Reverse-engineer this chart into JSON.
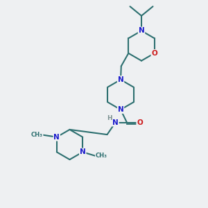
{
  "bg_color": "#eef0f2",
  "bond_color": "#2d7070",
  "N_color": "#1a1acc",
  "O_color": "#cc1a1a",
  "H_color": "#7a9090",
  "font_size": 7.5,
  "line_width": 1.5,
  "figsize": [
    3.0,
    3.0
  ],
  "dpi": 100,
  "xlim": [
    0,
    10
  ],
  "ylim": [
    0,
    10
  ]
}
